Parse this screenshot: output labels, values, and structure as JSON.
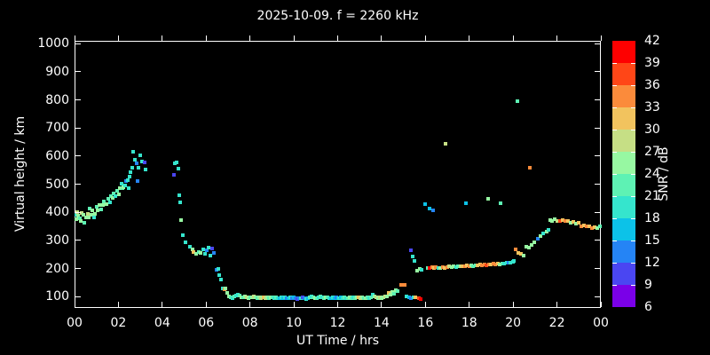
{
  "title": "2025-10-09. f = 2260 kHz",
  "axes": {
    "x": {
      "label": "UT Time / hrs",
      "min": 0,
      "max": 24,
      "tick_values": [
        0,
        2,
        4,
        6,
        8,
        10,
        12,
        14,
        16,
        18,
        20,
        22,
        24
      ],
      "tick_labels": [
        "00",
        "02",
        "04",
        "06",
        "08",
        "10",
        "12",
        "14",
        "16",
        "18",
        "20",
        "22",
        "00"
      ]
    },
    "y": {
      "label": "Virtual height / km",
      "min": 60,
      "max": 1010,
      "tick_values": [
        100,
        200,
        300,
        400,
        500,
        600,
        700,
        800,
        900,
        1000
      ],
      "tick_labels": [
        "100",
        "200",
        "300",
        "400",
        "500",
        "600",
        "700",
        "800",
        "900",
        "1000"
      ]
    }
  },
  "colorbar": {
    "label": "SNR / dB",
    "min": 6,
    "max": 42,
    "step": 3,
    "boundary_labels": [
      "42",
      "39",
      "36",
      "33",
      "30",
      "27",
      "24",
      "21",
      "18",
      "15",
      "12",
      "9",
      "6"
    ],
    "segment_colors_bottom_to_top": [
      "#7a00e8",
      "#4a46f2",
      "#2584f5",
      "#0cc2e8",
      "#35e5cd",
      "#5ef2b4",
      "#97f8a2",
      "#c6df85",
      "#f2c35e",
      "#fb8b3b",
      "#ff4617",
      "#fe0000"
    ]
  },
  "chart_data": {
    "type": "scatter",
    "title": "2025-10-09. f = 2260 kHz",
    "xlabel": "UT Time / hrs",
    "ylabel": "Virtual height / km",
    "zlabel": "SNR / dB",
    "xlim": [
      0,
      24
    ],
    "ylim": [
      60,
      1010
    ],
    "snr_lim": [
      6,
      42
    ],
    "grid": false,
    "legend": "colorbar-right",
    "points_format": [
      "time_hrs",
      "height_km",
      "snr_db"
    ],
    "points": [
      [
        0.02,
        380,
        25.5
      ],
      [
        0.06,
        396,
        19.5
      ],
      [
        0.1,
        403,
        28.5
      ],
      [
        0.14,
        391,
        25.5
      ],
      [
        0.2,
        383,
        22.5
      ],
      [
        0.26,
        371,
        25.5
      ],
      [
        0.3,
        402,
        28.5
      ],
      [
        0.36,
        394,
        25.5
      ],
      [
        0.42,
        366,
        22.5
      ],
      [
        0.5,
        386,
        25.5
      ],
      [
        0.56,
        398,
        28.5
      ],
      [
        0.62,
        384,
        25.5
      ],
      [
        0.66,
        416,
        22.5
      ],
      [
        0.72,
        396,
        25.5
      ],
      [
        0.78,
        409,
        25.5
      ],
      [
        0.84,
        384,
        19.5
      ],
      [
        0.9,
        399,
        25.5
      ],
      [
        0.96,
        424,
        22.5
      ],
      [
        1.02,
        409,
        25.5
      ],
      [
        1.1,
        430,
        25.5
      ],
      [
        1.16,
        412,
        22.5
      ],
      [
        1.24,
        428,
        25.5
      ],
      [
        1.3,
        441,
        22.5
      ],
      [
        1.4,
        433,
        25.5
      ],
      [
        1.48,
        450,
        22.5
      ],
      [
        1.56,
        438,
        19.5
      ],
      [
        1.62,
        460,
        22.5
      ],
      [
        1.7,
        455,
        25.5
      ],
      [
        1.76,
        470,
        22.5
      ],
      [
        1.84,
        462,
        19.5
      ],
      [
        1.9,
        481,
        22.5
      ],
      [
        1.98,
        466,
        25.5
      ],
      [
        2.04,
        490,
        25.5
      ],
      [
        2.1,
        505,
        19.5
      ],
      [
        2.14,
        488,
        22.5
      ],
      [
        2.19,
        491,
        25.5
      ],
      [
        2.26,
        500,
        19.5
      ],
      [
        2.32,
        516,
        13.5
      ],
      [
        2.39,
        519,
        19.5
      ],
      [
        2.43,
        488,
        19.5
      ],
      [
        2.48,
        531,
        19.5
      ],
      [
        2.52,
        545,
        19.5
      ],
      [
        2.58,
        562,
        19.5
      ],
      [
        2.63,
        620,
        19.5
      ],
      [
        2.7,
        591,
        19.5
      ],
      [
        2.79,
        577,
        13.5
      ],
      [
        2.83,
        516,
        13.5
      ],
      [
        2.88,
        562,
        19.5
      ],
      [
        2.96,
        605,
        19.5
      ],
      [
        3.05,
        585,
        19.5
      ],
      [
        3.16,
        580,
        10.5
      ],
      [
        3.2,
        556,
        19.5
      ],
      [
        4.49,
        537,
        10.5
      ],
      [
        4.55,
        577,
        19.5
      ],
      [
        4.62,
        580,
        19.5
      ],
      [
        4.68,
        560,
        19.5
      ],
      [
        4.74,
        463,
        19.5
      ],
      [
        4.78,
        440,
        19.5
      ],
      [
        4.82,
        377,
        25.5
      ],
      [
        4.9,
        322,
        19.5
      ],
      [
        5.02,
        297,
        19.5
      ],
      [
        5.22,
        282,
        19.5
      ],
      [
        5.34,
        272,
        25.5
      ],
      [
        5.4,
        263,
        31.5
      ],
      [
        5.5,
        257,
        25.5
      ],
      [
        5.62,
        263,
        22.5
      ],
      [
        5.72,
        260,
        25.5
      ],
      [
        5.83,
        272,
        19.5
      ],
      [
        5.91,
        257,
        19.5
      ],
      [
        6.0,
        269,
        13.5
      ],
      [
        6.07,
        278,
        19.5
      ],
      [
        6.15,
        250,
        19.5
      ],
      [
        6.23,
        276,
        10.5
      ],
      [
        6.32,
        260,
        13.5
      ],
      [
        6.44,
        198,
        13.5
      ],
      [
        6.5,
        202,
        19.5
      ],
      [
        6.56,
        180,
        19.5
      ],
      [
        6.64,
        164,
        19.5
      ],
      [
        6.72,
        134,
        19.5
      ],
      [
        6.78,
        131,
        34.5
      ],
      [
        6.84,
        134,
        25.5
      ],
      [
        6.92,
        118,
        25.5
      ],
      [
        7.0,
        104,
        25.5
      ],
      [
        7.08,
        101,
        22.5
      ],
      [
        7.16,
        98,
        19.5
      ],
      [
        7.24,
        103,
        22.5
      ],
      [
        7.32,
        108,
        19.5
      ],
      [
        7.4,
        112,
        19.5
      ],
      [
        7.48,
        106,
        22.5
      ],
      [
        7.56,
        102,
        25.5
      ],
      [
        7.64,
        100,
        22.5
      ],
      [
        7.72,
        103,
        25.5
      ],
      [
        7.8,
        101,
        28.5
      ],
      [
        7.88,
        99,
        25.5
      ],
      [
        7.96,
        102,
        22.5
      ],
      [
        8.04,
        100,
        25.5
      ],
      [
        8.12,
        103,
        28.5
      ],
      [
        8.2,
        101,
        25.5
      ],
      [
        8.28,
        98,
        22.5
      ],
      [
        8.36,
        101,
        25.5
      ],
      [
        8.44,
        99,
        28.5
      ],
      [
        8.52,
        102,
        25.5
      ],
      [
        8.6,
        100,
        31.5
      ],
      [
        8.68,
        98,
        28.5
      ],
      [
        8.76,
        101,
        25.5
      ],
      [
        8.84,
        99,
        22.5
      ],
      [
        8.92,
        102,
        25.5
      ],
      [
        9.0,
        100,
        22.5
      ],
      [
        9.08,
        98,
        19.5
      ],
      [
        9.16,
        101,
        22.5
      ],
      [
        9.24,
        99,
        19.5
      ],
      [
        9.32,
        97,
        16.5
      ],
      [
        9.4,
        100,
        19.5
      ],
      [
        9.48,
        98,
        16.5
      ],
      [
        9.56,
        101,
        19.5
      ],
      [
        9.64,
        99,
        13.5
      ],
      [
        9.72,
        97,
        16.5
      ],
      [
        9.8,
        100,
        19.5
      ],
      [
        9.88,
        98,
        13.5
      ],
      [
        9.96,
        100,
        16.5
      ],
      [
        10.04,
        98,
        13.5
      ],
      [
        10.12,
        96,
        10.5
      ],
      [
        10.2,
        99,
        13.5
      ],
      [
        10.28,
        97,
        19.5
      ],
      [
        10.36,
        100,
        10.5
      ],
      [
        10.44,
        98,
        13.5
      ],
      [
        10.52,
        96,
        19.5
      ],
      [
        10.6,
        99,
        16.5
      ],
      [
        10.68,
        101,
        22.5
      ],
      [
        10.76,
        103,
        19.5
      ],
      [
        10.84,
        100,
        22.5
      ],
      [
        10.92,
        97,
        25.5
      ],
      [
        11.0,
        99,
        22.5
      ],
      [
        11.08,
        102,
        19.5
      ],
      [
        11.16,
        104,
        22.5
      ],
      [
        11.24,
        101,
        19.5
      ],
      [
        11.32,
        98,
        22.5
      ],
      [
        11.4,
        100,
        25.5
      ],
      [
        11.48,
        102,
        22.5
      ],
      [
        11.56,
        99,
        19.5
      ],
      [
        11.64,
        97,
        16.5
      ],
      [
        11.72,
        100,
        19.5
      ],
      [
        11.8,
        98,
        16.5
      ],
      [
        11.88,
        101,
        13.5
      ],
      [
        11.96,
        99,
        16.5
      ],
      [
        12.04,
        97,
        19.5
      ],
      [
        12.12,
        100,
        16.5
      ],
      [
        12.2,
        98,
        19.5
      ],
      [
        12.28,
        101,
        22.5
      ],
      [
        12.36,
        99,
        19.5
      ],
      [
        12.44,
        97,
        22.5
      ],
      [
        12.52,
        100,
        25.5
      ],
      [
        12.6,
        98,
        22.5
      ],
      [
        12.68,
        101,
        19.5
      ],
      [
        12.76,
        99,
        22.5
      ],
      [
        12.84,
        102,
        25.5
      ],
      [
        12.92,
        100,
        31.5
      ],
      [
        13.0,
        98,
        28.5
      ],
      [
        13.08,
        101,
        25.5
      ],
      [
        13.16,
        99,
        22.5
      ],
      [
        13.24,
        97,
        25.5
      ],
      [
        13.32,
        100,
        22.5
      ],
      [
        13.4,
        98,
        19.5
      ],
      [
        13.48,
        101,
        22.5
      ],
      [
        13.56,
        110,
        19.5
      ],
      [
        13.64,
        105,
        25.5
      ],
      [
        13.72,
        100,
        28.5
      ],
      [
        13.8,
        98,
        25.5
      ],
      [
        13.88,
        101,
        28.5
      ],
      [
        13.96,
        99,
        25.5
      ],
      [
        14.04,
        102,
        25.5
      ],
      [
        14.12,
        105,
        28.5
      ],
      [
        14.2,
        103,
        25.5
      ],
      [
        14.28,
        118,
        31.5
      ],
      [
        14.36,
        112,
        25.5
      ],
      [
        14.44,
        120,
        25.5
      ],
      [
        14.52,
        115,
        22.5
      ],
      [
        14.6,
        125,
        25.5
      ],
      [
        14.7,
        122,
        22.5
      ],
      [
        14.85,
        146,
        34.5
      ],
      [
        15.0,
        146,
        34.5
      ],
      [
        15.1,
        103,
        19.5
      ],
      [
        15.2,
        100,
        16.5
      ],
      [
        15.3,
        98,
        13.5
      ],
      [
        15.4,
        102,
        19.5
      ],
      [
        15.5,
        101,
        31.5
      ],
      [
        15.65,
        97,
        37.5
      ],
      [
        15.75,
        95,
        40.5
      ],
      [
        15.3,
        269,
        10.5
      ],
      [
        15.38,
        245,
        19.5
      ],
      [
        15.46,
        229,
        19.5
      ],
      [
        15.95,
        433,
        16.5
      ],
      [
        16.16,
        417,
        16.5
      ],
      [
        16.3,
        411,
        13.5
      ],
      [
        15.6,
        196,
        25.5
      ],
      [
        15.7,
        203,
        25.5
      ],
      [
        15.8,
        200,
        19.5
      ],
      [
        16.05,
        204,
        22.5
      ],
      [
        16.15,
        205,
        40.5
      ],
      [
        16.25,
        207,
        34.5
      ],
      [
        16.35,
        205,
        31.5
      ],
      [
        16.45,
        208,
        34.5
      ],
      [
        16.55,
        204,
        19.5
      ],
      [
        16.65,
        206,
        25.5
      ],
      [
        16.75,
        208,
        34.5
      ],
      [
        16.85,
        205,
        31.5
      ],
      [
        16.95,
        207,
        34.5
      ],
      [
        17.05,
        210,
        28.5
      ],
      [
        17.15,
        208,
        25.5
      ],
      [
        17.25,
        211,
        25.5
      ],
      [
        17.35,
        209,
        19.5
      ],
      [
        17.45,
        212,
        22.5
      ],
      [
        17.55,
        210,
        28.5
      ],
      [
        17.65,
        213,
        31.5
      ],
      [
        17.75,
        211,
        34.5
      ],
      [
        17.85,
        214,
        31.5
      ],
      [
        17.95,
        212,
        34.5
      ],
      [
        18.05,
        215,
        25.5
      ],
      [
        18.15,
        213,
        22.5
      ],
      [
        18.25,
        216,
        22.5
      ],
      [
        18.35,
        214,
        31.5
      ],
      [
        18.45,
        217,
        31.5
      ],
      [
        18.55,
        215,
        34.5
      ],
      [
        18.65,
        218,
        34.5
      ],
      [
        18.75,
        216,
        37.5
      ],
      [
        18.85,
        219,
        34.5
      ],
      [
        18.95,
        217,
        31.5
      ],
      [
        19.05,
        220,
        34.5
      ],
      [
        19.15,
        218,
        34.5
      ],
      [
        19.25,
        221,
        31.5
      ],
      [
        19.35,
        219,
        25.5
      ],
      [
        19.45,
        222,
        22.5
      ],
      [
        19.55,
        220,
        19.5
      ],
      [
        19.65,
        223,
        19.5
      ],
      [
        19.76,
        225,
        13.5
      ],
      [
        19.85,
        224,
        19.5
      ],
      [
        19.95,
        228,
        19.5
      ],
      [
        16.88,
        648,
        28.5
      ],
      [
        17.81,
        436,
        16.5
      ],
      [
        18.83,
        451,
        25.5
      ],
      [
        19.39,
        436,
        22.5
      ],
      [
        20.16,
        799,
        22.5
      ],
      [
        20.73,
        561,
        34.5
      ],
      [
        20.0,
        232,
        19.5
      ],
      [
        20.08,
        273,
        34.5
      ],
      [
        20.2,
        260,
        31.5
      ],
      [
        20.32,
        257,
        31.5
      ],
      [
        20.45,
        248,
        25.5
      ],
      [
        20.57,
        281,
        25.5
      ],
      [
        20.69,
        278,
        25.5
      ],
      [
        20.81,
        288,
        25.5
      ],
      [
        20.93,
        297,
        25.5
      ],
      [
        21.1,
        308,
        13.5
      ],
      [
        21.22,
        320,
        25.5
      ],
      [
        21.34,
        329,
        19.5
      ],
      [
        21.5,
        335,
        25.5
      ],
      [
        21.58,
        340,
        19.5
      ],
      [
        21.66,
        377,
        25.5
      ],
      [
        21.74,
        371,
        25.5
      ],
      [
        21.86,
        380,
        25.5
      ],
      [
        21.98,
        374,
        28.5
      ],
      [
        22.1,
        371,
        37.5
      ],
      [
        22.23,
        377,
        31.5
      ],
      [
        22.35,
        371,
        34.5
      ],
      [
        22.47,
        374,
        31.5
      ],
      [
        22.59,
        365,
        25.5
      ],
      [
        22.72,
        368,
        31.5
      ],
      [
        22.84,
        362,
        25.5
      ],
      [
        22.96,
        365,
        31.5
      ],
      [
        23.08,
        355,
        34.5
      ],
      [
        23.2,
        358,
        31.5
      ],
      [
        23.32,
        352,
        34.5
      ],
      [
        23.45,
        352,
        31.5
      ],
      [
        23.57,
        346,
        34.5
      ],
      [
        23.69,
        349,
        31.5
      ],
      [
        23.81,
        346,
        25.5
      ],
      [
        23.93,
        352,
        22.5
      ]
    ]
  }
}
